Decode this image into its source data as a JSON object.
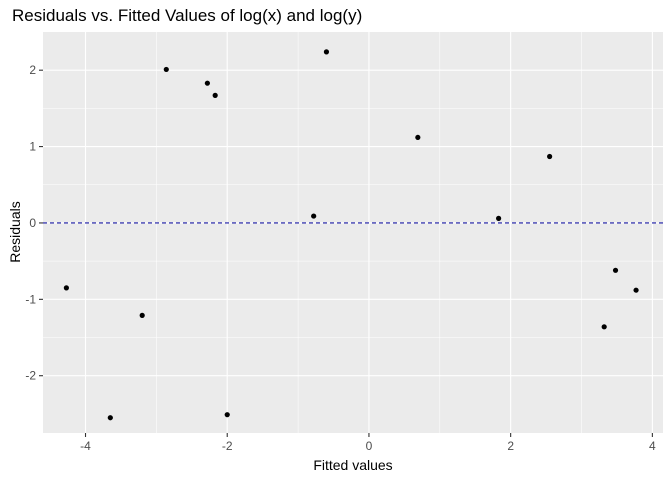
{
  "chart_data": {
    "type": "scatter",
    "title": "Residuals vs. Fitted Values of log(x) and log(y)",
    "xlabel": "Fitted values",
    "ylabel": "Residuals",
    "xlim": [
      -4.6,
      4.15
    ],
    "ylim": [
      -2.75,
      2.5
    ],
    "x_ticks": [
      -4,
      -2,
      0,
      2,
      4
    ],
    "x_tick_labels": [
      "-4",
      "-2",
      "0",
      "2",
      "4"
    ],
    "y_ticks": [
      -2,
      -1,
      0,
      1,
      2
    ],
    "y_tick_labels": [
      "-2",
      "-1",
      "0",
      "1",
      "2"
    ],
    "x_minor": [
      -3,
      -1,
      1,
      3
    ],
    "y_minor": [
      -1.5,
      -0.5,
      0.5,
      1.5
    ],
    "grid": true,
    "reference_line": {
      "y": 0,
      "style": "dashed",
      "color": "#1a1aa6"
    },
    "point_color": "#000000",
    "background_color": "#ebebeb",
    "points": [
      {
        "x": -4.27,
        "y": -0.85
      },
      {
        "x": -3.65,
        "y": -2.55
      },
      {
        "x": -3.2,
        "y": -1.21
      },
      {
        "x": -2.86,
        "y": 2.01
      },
      {
        "x": -2.28,
        "y": 1.83
      },
      {
        "x": -2.17,
        "y": 1.67
      },
      {
        "x": -2.0,
        "y": -2.51
      },
      {
        "x": -0.78,
        "y": 0.09
      },
      {
        "x": -0.6,
        "y": 2.24
      },
      {
        "x": 0.69,
        "y": 1.12
      },
      {
        "x": 1.83,
        "y": 0.06
      },
      {
        "x": 2.55,
        "y": 0.87
      },
      {
        "x": 3.32,
        "y": -1.36
      },
      {
        "x": 3.48,
        "y": -0.62
      },
      {
        "x": 3.77,
        "y": -0.88
      }
    ]
  }
}
